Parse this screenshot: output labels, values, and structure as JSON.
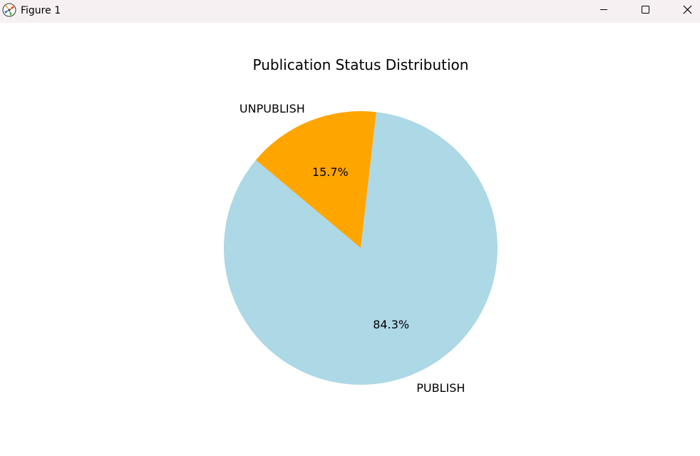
{
  "window": {
    "title": "Figure 1",
    "icon": "matplotlib-icon",
    "controls": {
      "minimize_icon": "minimize-icon",
      "maximize_icon": "maximize-icon",
      "close_icon": "close-icon"
    }
  },
  "chart_data": {
    "type": "pie",
    "title": "Publication Status Distribution",
    "categories": [
      "PUBLISH",
      "UNPUBLISH"
    ],
    "values": [
      84.3,
      15.7
    ],
    "labels": [
      "84.3%",
      "15.7%"
    ],
    "colors": [
      "#add8e6",
      "#ffa500"
    ],
    "startangle": 140
  }
}
